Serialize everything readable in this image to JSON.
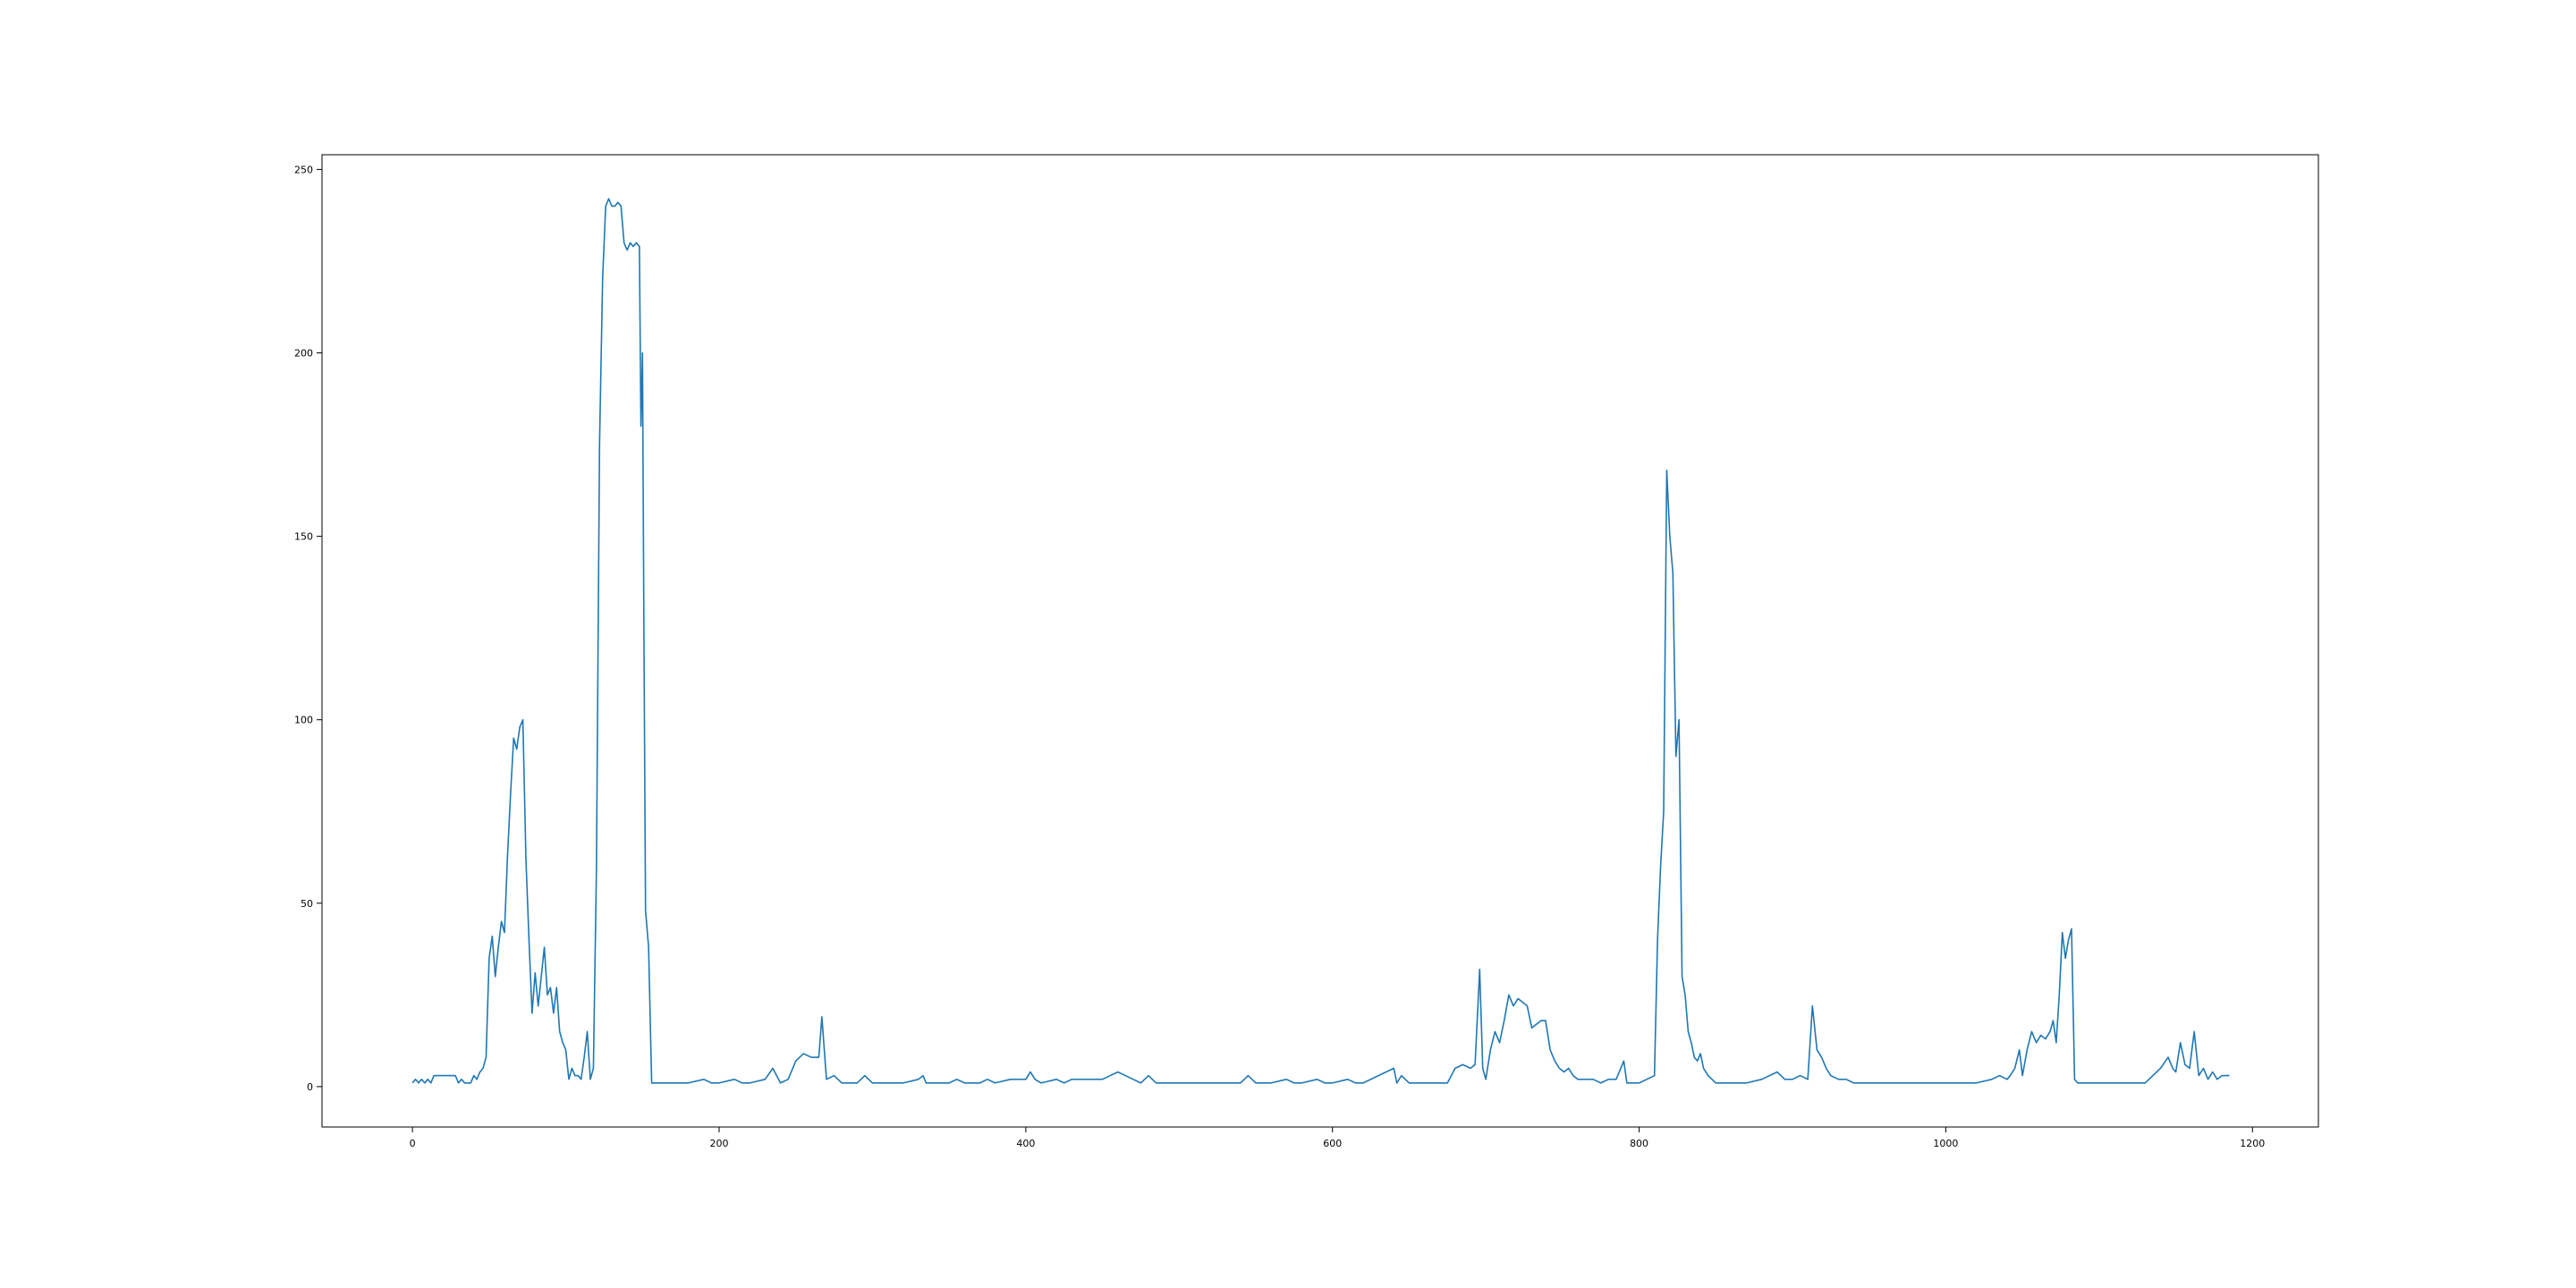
{
  "chart_data": {
    "type": "line",
    "title": "",
    "xlabel": "",
    "ylabel": "",
    "xlim": [
      -59,
      1243
    ],
    "ylim": [
      -11,
      254
    ],
    "xticks": [
      0,
      200,
      400,
      600,
      800,
      1000,
      1200
    ],
    "yticks": [
      0,
      50,
      100,
      150,
      200,
      250
    ],
    "xtick_labels": [
      "0",
      "200",
      "400",
      "600",
      "800",
      "1000",
      "1200"
    ],
    "ytick_labels": [
      "0",
      "50",
      "100",
      "150",
      "200",
      "250"
    ],
    "grid": false,
    "legend": "none",
    "series": [
      {
        "color": "#1f77b4",
        "points": [
          [
            0,
            1
          ],
          [
            2,
            2
          ],
          [
            4,
            1
          ],
          [
            6,
            2
          ],
          [
            8,
            1
          ],
          [
            10,
            2
          ],
          [
            12,
            1
          ],
          [
            14,
            3
          ],
          [
            16,
            3
          ],
          [
            18,
            3
          ],
          [
            20,
            3
          ],
          [
            22,
            3
          ],
          [
            24,
            3
          ],
          [
            26,
            3
          ],
          [
            28,
            3
          ],
          [
            30,
            1
          ],
          [
            32,
            2
          ],
          [
            34,
            1
          ],
          [
            36,
            1
          ],
          [
            38,
            1
          ],
          [
            40,
            3
          ],
          [
            42,
            2
          ],
          [
            44,
            4
          ],
          [
            46,
            5
          ],
          [
            48,
            8
          ],
          [
            50,
            35
          ],
          [
            52,
            41
          ],
          [
            54,
            30
          ],
          [
            56,
            38
          ],
          [
            58,
            45
          ],
          [
            60,
            42
          ],
          [
            62,
            63
          ],
          [
            64,
            80
          ],
          [
            66,
            95
          ],
          [
            68,
            92
          ],
          [
            70,
            98
          ],
          [
            72,
            100
          ],
          [
            74,
            62
          ],
          [
            76,
            40
          ],
          [
            78,
            20
          ],
          [
            80,
            31
          ],
          [
            82,
            22
          ],
          [
            84,
            30
          ],
          [
            86,
            38
          ],
          [
            88,
            25
          ],
          [
            90,
            27
          ],
          [
            92,
            20
          ],
          [
            94,
            27
          ],
          [
            96,
            15
          ],
          [
            98,
            12
          ],
          [
            100,
            10
          ],
          [
            102,
            2
          ],
          [
            104,
            5
          ],
          [
            106,
            3
          ],
          [
            108,
            3
          ],
          [
            110,
            2
          ],
          [
            112,
            8
          ],
          [
            114,
            15
          ],
          [
            116,
            2
          ],
          [
            118,
            5
          ],
          [
            120,
            60
          ],
          [
            122,
            175
          ],
          [
            124,
            220
          ],
          [
            126,
            240
          ],
          [
            128,
            242
          ],
          [
            130,
            240
          ],
          [
            132,
            240
          ],
          [
            134,
            241
          ],
          [
            136,
            240
          ],
          [
            138,
            230
          ],
          [
            140,
            228
          ],
          [
            142,
            230
          ],
          [
            144,
            229
          ],
          [
            146,
            230
          ],
          [
            148,
            229
          ],
          [
            149,
            180
          ],
          [
            150,
            200
          ],
          [
            151,
            120
          ],
          [
            152,
            48
          ],
          [
            154,
            38
          ],
          [
            156,
            1
          ],
          [
            160,
            1
          ],
          [
            170,
            1
          ],
          [
            180,
            1
          ],
          [
            190,
            2
          ],
          [
            195,
            1
          ],
          [
            200,
            1
          ],
          [
            210,
            2
          ],
          [
            215,
            1
          ],
          [
            220,
            1
          ],
          [
            230,
            2
          ],
          [
            235,
            5
          ],
          [
            240,
            1
          ],
          [
            245,
            2
          ],
          [
            250,
            7
          ],
          [
            255,
            9
          ],
          [
            260,
            8
          ],
          [
            265,
            8
          ],
          [
            267,
            19
          ],
          [
            270,
            2
          ],
          [
            275,
            3
          ],
          [
            280,
            1
          ],
          [
            290,
            1
          ],
          [
            295,
            3
          ],
          [
            300,
            1
          ],
          [
            310,
            1
          ],
          [
            320,
            1
          ],
          [
            330,
            2
          ],
          [
            333,
            3
          ],
          [
            335,
            1
          ],
          [
            340,
            1
          ],
          [
            350,
            1
          ],
          [
            355,
            2
          ],
          [
            360,
            1
          ],
          [
            370,
            1
          ],
          [
            375,
            2
          ],
          [
            380,
            1
          ],
          [
            390,
            2
          ],
          [
            400,
            2
          ],
          [
            403,
            4
          ],
          [
            406,
            2
          ],
          [
            410,
            1
          ],
          [
            420,
            2
          ],
          [
            425,
            1
          ],
          [
            430,
            2
          ],
          [
            440,
            2
          ],
          [
            450,
            2
          ],
          [
            455,
            3
          ],
          [
            460,
            4
          ],
          [
            465,
            3
          ],
          [
            470,
            2
          ],
          [
            475,
            1
          ],
          [
            480,
            3
          ],
          [
            485,
            1
          ],
          [
            490,
            1
          ],
          [
            500,
            1
          ],
          [
            520,
            1
          ],
          [
            540,
            1
          ],
          [
            545,
            3
          ],
          [
            550,
            1
          ],
          [
            560,
            1
          ],
          [
            570,
            2
          ],
          [
            575,
            1
          ],
          [
            580,
            1
          ],
          [
            590,
            2
          ],
          [
            595,
            1
          ],
          [
            600,
            1
          ],
          [
            610,
            2
          ],
          [
            615,
            1
          ],
          [
            620,
            1
          ],
          [
            640,
            5
          ],
          [
            642,
            1
          ],
          [
            645,
            3
          ],
          [
            650,
            1
          ],
          [
            660,
            1
          ],
          [
            670,
            1
          ],
          [
            675,
            1
          ],
          [
            680,
            5
          ],
          [
            685,
            6
          ],
          [
            690,
            5
          ],
          [
            693,
            6
          ],
          [
            696,
            32
          ],
          [
            698,
            5
          ],
          [
            700,
            2
          ],
          [
            703,
            10
          ],
          [
            706,
            15
          ],
          [
            709,
            12
          ],
          [
            712,
            18
          ],
          [
            715,
            25
          ],
          [
            718,
            22
          ],
          [
            721,
            24
          ],
          [
            724,
            23
          ],
          [
            727,
            22
          ],
          [
            730,
            16
          ],
          [
            733,
            17
          ],
          [
            736,
            18
          ],
          [
            739,
            18
          ],
          [
            742,
            10
          ],
          [
            745,
            7
          ],
          [
            748,
            5
          ],
          [
            751,
            4
          ],
          [
            754,
            5
          ],
          [
            757,
            3
          ],
          [
            760,
            2
          ],
          [
            765,
            2
          ],
          [
            770,
            2
          ],
          [
            775,
            1
          ],
          [
            780,
            2
          ],
          [
            785,
            2
          ],
          [
            790,
            7
          ],
          [
            792,
            1
          ],
          [
            800,
            1
          ],
          [
            805,
            2
          ],
          [
            810,
            3
          ],
          [
            812,
            40
          ],
          [
            814,
            60
          ],
          [
            816,
            75
          ],
          [
            818,
            168
          ],
          [
            820,
            150
          ],
          [
            822,
            140
          ],
          [
            824,
            90
          ],
          [
            826,
            100
          ],
          [
            828,
            30
          ],
          [
            830,
            25
          ],
          [
            832,
            15
          ],
          [
            834,
            12
          ],
          [
            836,
            8
          ],
          [
            838,
            7
          ],
          [
            840,
            9
          ],
          [
            842,
            5
          ],
          [
            845,
            3
          ],
          [
            850,
            1
          ],
          [
            860,
            1
          ],
          [
            870,
            1
          ],
          [
            880,
            2
          ],
          [
            890,
            4
          ],
          [
            895,
            2
          ],
          [
            900,
            2
          ],
          [
            905,
            3
          ],
          [
            910,
            2
          ],
          [
            913,
            22
          ],
          [
            916,
            10
          ],
          [
            919,
            8
          ],
          [
            922,
            5
          ],
          [
            925,
            3
          ],
          [
            930,
            2
          ],
          [
            935,
            2
          ],
          [
            940,
            1
          ],
          [
            950,
            1
          ],
          [
            970,
            1
          ],
          [
            1000,
            1
          ],
          [
            1020,
            1
          ],
          [
            1030,
            2
          ],
          [
            1035,
            3
          ],
          [
            1040,
            2
          ],
          [
            1042,
            3
          ],
          [
            1045,
            5
          ],
          [
            1048,
            10
          ],
          [
            1050,
            3
          ],
          [
            1053,
            10
          ],
          [
            1056,
            15
          ],
          [
            1059,
            12
          ],
          [
            1062,
            14
          ],
          [
            1065,
            13
          ],
          [
            1068,
            15
          ],
          [
            1070,
            18
          ],
          [
            1072,
            12
          ],
          [
            1074,
            25
          ],
          [
            1076,
            42
          ],
          [
            1078,
            35
          ],
          [
            1080,
            40
          ],
          [
            1082,
            43
          ],
          [
            1084,
            2
          ],
          [
            1086,
            1
          ],
          [
            1090,
            1
          ],
          [
            1100,
            1
          ],
          [
            1110,
            1
          ],
          [
            1120,
            1
          ],
          [
            1130,
            1
          ],
          [
            1135,
            3
          ],
          [
            1140,
            5
          ],
          [
            1145,
            8
          ],
          [
            1148,
            5
          ],
          [
            1150,
            4
          ],
          [
            1153,
            12
          ],
          [
            1156,
            6
          ],
          [
            1159,
            5
          ],
          [
            1162,
            15
          ],
          [
            1165,
            3
          ],
          [
            1168,
            5
          ],
          [
            1171,
            2
          ],
          [
            1174,
            4
          ],
          [
            1177,
            2
          ],
          [
            1180,
            3
          ],
          [
            1185,
            3
          ]
        ]
      }
    ]
  }
}
